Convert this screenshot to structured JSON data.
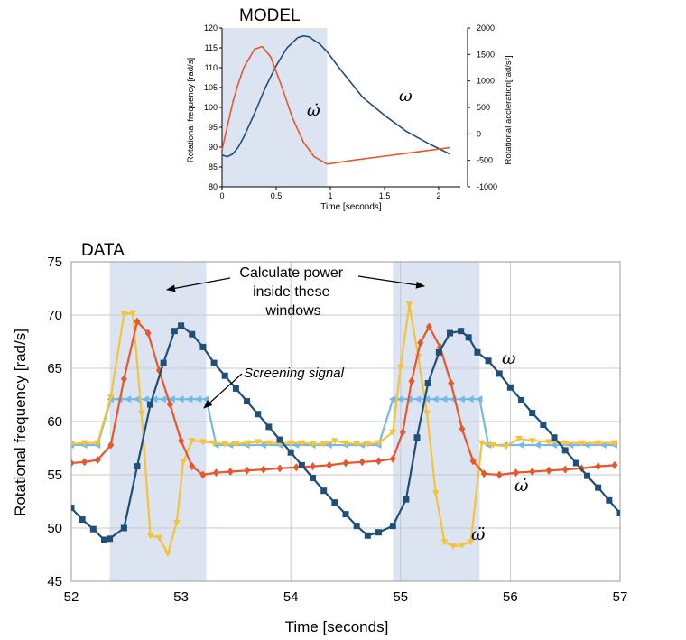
{
  "chart_data": [
    {
      "id": "model",
      "type": "line",
      "title": "MODEL",
      "xlabel": "Time [seconds]",
      "ylabel": "Rotational frequency [rad/s]",
      "y2label": "Rotational accleration[rad/s²]",
      "xlim": [
        0,
        2.2
      ],
      "ylim": [
        80,
        120
      ],
      "y2lim": [
        -1000,
        2000
      ],
      "x_ticks": [
        "0",
        "0.5",
        "1",
        "1.5",
        "2"
      ],
      "y_ticks": [
        "80",
        "85",
        "90",
        "95",
        "100",
        "105",
        "110",
        "115",
        "120"
      ],
      "y2_ticks": [
        "-1000",
        "-500",
        "0",
        "500",
        "1000",
        "1500",
        "2000"
      ],
      "shaded_window": [
        0,
        0.97
      ],
      "grid": false,
      "series": [
        {
          "name": "ω",
          "axis": "left",
          "color": "#1f4e79",
          "x": [
            0,
            0.05,
            0.1,
            0.15,
            0.2,
            0.3,
            0.4,
            0.5,
            0.6,
            0.7,
            0.75,
            0.8,
            0.9,
            0.97,
            1.1,
            1.3,
            1.5,
            1.7,
            1.9,
            2.1
          ],
          "y": [
            88,
            87.6,
            88.3,
            90,
            92.5,
            98.5,
            105,
            110.5,
            115,
            117.6,
            118,
            117.8,
            116,
            114,
            109.3,
            102.5,
            98,
            94,
            91,
            88.3
          ]
        },
        {
          "name": "ω̇",
          "axis": "right",
          "color": "#e8562a",
          "x": [
            0,
            0.05,
            0.1,
            0.15,
            0.2,
            0.3,
            0.37,
            0.45,
            0.55,
            0.65,
            0.75,
            0.85,
            0.97,
            1.2,
            1.5,
            1.8,
            2.1
          ],
          "y": [
            -300,
            150,
            600,
            950,
            1250,
            1600,
            1650,
            1450,
            900,
            300,
            -150,
            -430,
            -570,
            -500,
            -420,
            -340,
            -260
          ]
        }
      ]
    },
    {
      "id": "data",
      "type": "line",
      "title": "DATA",
      "xlabel": "Time [seconds]",
      "ylabel": "Rotational frequency [rad/s]",
      "xlim": [
        52,
        57
      ],
      "ylim": [
        45,
        75
      ],
      "x_ticks": [
        "52",
        "53",
        "54",
        "55",
        "56",
        "57"
      ],
      "y_ticks": [
        "45",
        "50",
        "55",
        "60",
        "65",
        "70",
        "75"
      ],
      "grid": true,
      "shaded_windows": [
        [
          52.35,
          53.23
        ],
        [
          54.93,
          55.72
        ]
      ],
      "annotations": {
        "windows_note": "Calculate power\ninside these\nwindows",
        "screening": "Screening signal",
        "omega": "ω",
        "omega_dot": "ω̇",
        "omega_ddot": "ω̈"
      },
      "series": [
        {
          "name": "ω",
          "color": "#1f4e79",
          "marker": "square",
          "x": [
            52,
            52.1,
            52.2,
            52.3,
            52.35,
            52.48,
            52.6,
            52.72,
            52.84,
            52.94,
            53,
            53.1,
            53.2,
            53.3,
            53.4,
            53.5,
            53.6,
            53.7,
            53.8,
            53.9,
            54,
            54.1,
            54.2,
            54.3,
            54.4,
            54.5,
            54.6,
            54.7,
            54.8,
            54.93,
            55.05,
            55.15,
            55.25,
            55.35,
            55.45,
            55.55,
            55.62,
            55.7,
            55.8,
            55.9,
            56,
            56.1,
            56.2,
            56.3,
            56.4,
            56.5,
            56.6,
            56.7,
            56.8,
            56.9,
            57
          ],
          "y": [
            51.9,
            50.8,
            49.9,
            48.9,
            49,
            50,
            55.8,
            61.6,
            65.5,
            68.5,
            69,
            68.2,
            67,
            65.5,
            64.3,
            63.1,
            61.9,
            60.7,
            59.5,
            58.3,
            57.1,
            55.9,
            54.7,
            53.5,
            52.4,
            51.3,
            50.2,
            49.3,
            49.6,
            50.2,
            52.7,
            58.5,
            63.6,
            66.5,
            68.3,
            68.5,
            67.9,
            66.5,
            65.7,
            64.5,
            63.2,
            62,
            60.8,
            59.7,
            58.5,
            57.3,
            56.1,
            54.9,
            53.8,
            52.6,
            51.4
          ]
        },
        {
          "name": "ω̇",
          "color": "#e8562a",
          "marker": "diamond",
          "x": [
            52,
            52.12,
            52.24,
            52.36,
            52.48,
            52.6,
            52.7,
            52.8,
            52.9,
            53,
            53.1,
            53.2,
            53.32,
            53.45,
            53.6,
            53.75,
            53.9,
            54.05,
            54.2,
            54.35,
            54.5,
            54.65,
            54.8,
            54.93,
            55.02,
            55.1,
            55.18,
            55.26,
            55.36,
            55.46,
            55.56,
            55.66,
            55.76,
            55.9,
            56.05,
            56.2,
            56.35,
            56.5,
            56.65,
            56.8,
            56.95
          ],
          "y": [
            56.1,
            56.2,
            56.4,
            57.8,
            64,
            69.4,
            68.3,
            64.8,
            61.6,
            58.2,
            55.8,
            55,
            55.2,
            55.3,
            55.4,
            55.5,
            55.6,
            55.7,
            55.8,
            55.9,
            56.1,
            56.2,
            56.3,
            56.5,
            59,
            63.8,
            67.4,
            68.9,
            67,
            63.6,
            59.3,
            56.3,
            55.1,
            55,
            55.2,
            55.3,
            55.4,
            55.5,
            55.6,
            55.8,
            55.9
          ]
        },
        {
          "name": "ω̈",
          "color": "#f2c33b",
          "marker": "triangle-down",
          "x": [
            52,
            52.12,
            52.24,
            52.36,
            52.48,
            52.56,
            52.64,
            52.72,
            52.8,
            52.88,
            52.96,
            53.02,
            53.1,
            53.2,
            53.3,
            53.4,
            53.5,
            53.6,
            53.7,
            53.8,
            53.9,
            54,
            54.1,
            54.2,
            54.3,
            54.4,
            54.5,
            54.6,
            54.7,
            54.8,
            54.93,
            55,
            55.08,
            55.16,
            55.24,
            55.32,
            55.4,
            55.48,
            55.56,
            55.64,
            55.74,
            55.84,
            55.96,
            56.08,
            56.2,
            56.35,
            56.5,
            56.65,
            56.8,
            56.95
          ],
          "y": [
            57.9,
            58,
            58,
            62.3,
            70.1,
            70.2,
            60.8,
            49.3,
            49.1,
            47.6,
            50.5,
            56.2,
            58.2,
            58.1,
            58,
            57.9,
            57.9,
            58,
            58.1,
            58,
            58,
            58,
            58,
            57.9,
            57.9,
            58.2,
            58,
            57.9,
            57.9,
            58,
            59,
            65.1,
            71,
            66.1,
            60.8,
            53.3,
            48.7,
            48.3,
            48.4,
            48.7,
            58,
            57.8,
            57.7,
            58.4,
            58.2,
            58.1,
            58,
            58,
            58,
            58
          ]
        },
        {
          "name": "Screening signal",
          "color": "#74b9e8",
          "marker": "triangle-left",
          "x": [
            52,
            52.12,
            52.24,
            52.36,
            52.44,
            52.52,
            52.6,
            52.68,
            52.76,
            52.84,
            52.92,
            53,
            53.08,
            53.16,
            53.23,
            53.32,
            53.45,
            53.6,
            53.75,
            53.9,
            54.05,
            54.2,
            54.35,
            54.5,
            54.65,
            54.8,
            54.93,
            55,
            55.08,
            55.16,
            55.24,
            55.32,
            55.4,
            55.48,
            55.56,
            55.64,
            55.72,
            55.8,
            55.95,
            56.1,
            56.25,
            56.4,
            56.55,
            56.7,
            56.85,
            56.95
          ],
          "y": [
            57.8,
            57.8,
            57.8,
            62.1,
            62.1,
            62.1,
            62.1,
            62.1,
            62.1,
            62.1,
            62.1,
            62.1,
            62.1,
            62.1,
            62.1,
            57.8,
            57.8,
            57.8,
            57.8,
            57.8,
            57.8,
            57.8,
            57.8,
            57.8,
            57.8,
            57.8,
            62.1,
            62.1,
            62.1,
            62.1,
            62.1,
            62.1,
            62.1,
            62.1,
            62.1,
            62.1,
            62.1,
            57.8,
            57.8,
            57.8,
            57.8,
            57.8,
            57.8,
            57.8,
            57.8,
            57.8
          ]
        }
      ]
    }
  ]
}
